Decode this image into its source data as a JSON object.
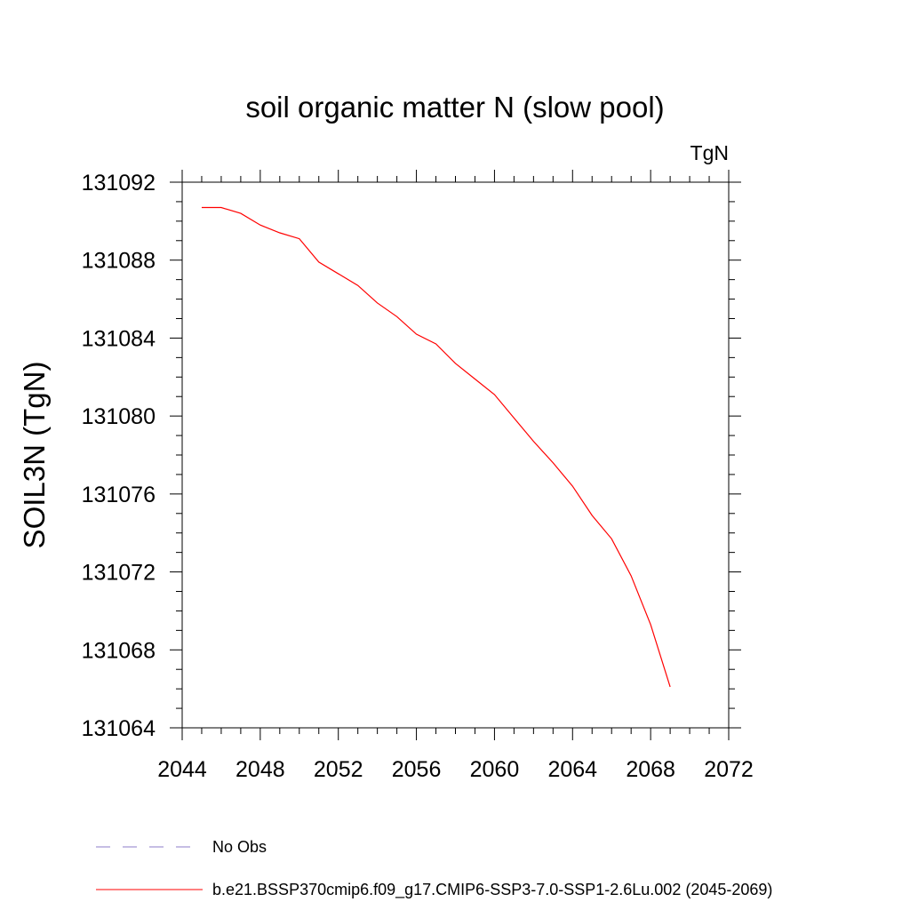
{
  "chart_data": {
    "type": "line",
    "title": "soil organic matter N (slow pool)",
    "units_label": "TgN",
    "xlabel": "",
    "ylabel": "SOIL3N  (TgN)",
    "xlim": [
      2044,
      2072
    ],
    "ylim": [
      131064,
      131092
    ],
    "x_ticks": [
      "2044",
      "2048",
      "2052",
      "2056",
      "2060",
      "2064",
      "2068",
      "2072"
    ],
    "y_ticks": [
      "131064",
      "131068",
      "131072",
      "131076",
      "131080",
      "131084",
      "131088",
      "131092"
    ],
    "grid": false,
    "legend_position": "bottom-left",
    "legend": [
      {
        "label": "No Obs",
        "color": "#8c7dc8",
        "dash": "dashed"
      },
      {
        "label": "b.e21.BSSP370cmip6.f09_g17.CMIP6-SSP3-7.0-SSP1-2.6Lu.002 (2045-2069)",
        "color": "#ff0000",
        "dash": "solid"
      }
    ],
    "series": [
      {
        "name": "b.e21.BSSP370cmip6.f09_g17.CMIP6-SSP3-7.0-SSP1-2.6Lu.002 (2045-2069)",
        "color": "#ff0000",
        "x": [
          2045,
          2046,
          2047,
          2048,
          2049,
          2050,
          2051,
          2052,
          2053,
          2054,
          2055,
          2056,
          2057,
          2058,
          2059,
          2060,
          2061,
          2062,
          2063,
          2064,
          2065,
          2066,
          2067,
          2068,
          2069
        ],
        "y": [
          131090.7,
          131090.7,
          131090.4,
          131089.8,
          131089.4,
          131089.1,
          131087.9,
          131087.3,
          131086.7,
          131085.8,
          131085.1,
          131084.2,
          131083.7,
          131082.7,
          131081.9,
          131081.1,
          131079.9,
          131078.7,
          131077.6,
          131076.4,
          131074.9,
          131073.7,
          131071.8,
          131069.3,
          131066.1
        ]
      }
    ]
  }
}
